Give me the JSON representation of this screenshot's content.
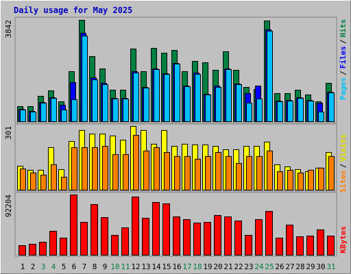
{
  "chart_data": [
    {
      "type": "bar",
      "title": "Daily usage for May 2025",
      "ylim": [
        0,
        3842
      ],
      "legend_separator": "/",
      "series": [
        {
          "name": "Hits",
          "color": "#008040",
          "values": [
            571,
            571,
            960,
            1168,
            753,
            1895,
            3842,
            2466,
            1999,
            1194,
            1194,
            2752,
            1895,
            2778,
            2596,
            2700,
            1895,
            2284,
            2232,
            1947,
            2648,
            1947,
            1298,
            1220,
            3816,
            1064,
            1064,
            1194,
            1012,
            753,
            1454
          ]
        },
        {
          "name": "Files",
          "color": "#0000ff",
          "values": [
            467,
            389,
            727,
            909,
            623,
            1480,
            3350,
            1661,
            1454,
            883,
            883,
            1895,
            1298,
            2000,
            1817,
            2207,
            1350,
            1843,
            1038,
            1350,
            2000,
            1428,
            1064,
            1350,
            3480,
            779,
            805,
            909,
            805,
            701,
            1116
          ]
        },
        {
          "name": "Pages",
          "color": "#00c0ff",
          "values": [
            441,
            363,
            701,
            883,
            441,
            831,
            3245,
            1584,
            1402,
            857,
            857,
            1843,
            1272,
            1973,
            1791,
            2181,
            1324,
            1791,
            1012,
            1298,
            1973,
            1402,
            701,
            857,
            3427,
            753,
            779,
            883,
            779,
            363,
            1090
          ]
        }
      ]
    },
    {
      "type": "bar",
      "ylim": [
        0,
        301
      ],
      "legend_separator": "/",
      "series": [
        {
          "name": "Visits",
          "color": "#ffff00",
          "values": [
            113,
            94,
            94,
            201,
            97,
            230,
            282,
            265,
            265,
            256,
            236,
            301,
            282,
            217,
            282,
            207,
            217,
            214,
            214,
            207,
            191,
            191,
            207,
            207,
            227,
            120,
            110,
            97,
            87,
            104,
            178
          ]
        },
        {
          "name": "Sites",
          "color": "#ff8000",
          "values": [
            100,
            81,
            71,
            120,
            61,
            201,
            201,
            201,
            207,
            168,
            168,
            259,
            185,
            201,
            178,
            159,
            159,
            146,
            159,
            178,
            159,
            126,
            159,
            159,
            185,
            87,
            94,
            81,
            94,
            104,
            159
          ]
        }
      ]
    },
    {
      "type": "bar",
      "ylim": [
        0,
        92204
      ],
      "categories": [
        "1",
        "2",
        "3",
        "4",
        "5",
        "6",
        "7",
        "8",
        "9",
        "10",
        "11",
        "12",
        "13",
        "14",
        "15",
        "16",
        "17",
        "18",
        "19",
        "20",
        "21",
        "22",
        "23",
        "24",
        "25",
        "26",
        "27",
        "28",
        "29",
        "30",
        "31"
      ],
      "category_colors": [
        "#000000",
        "#000000",
        "#008040",
        "#008040",
        "#000000",
        "#000000",
        "#000000",
        "#000000",
        "#000000",
        "#008040",
        "#008040",
        "#000000",
        "#000000",
        "#000000",
        "#000000",
        "#000000",
        "#008040",
        "#008040",
        "#000000",
        "#000000",
        "#000000",
        "#000000",
        "#000000",
        "#008040",
        "#008040",
        "#000000",
        "#000000",
        "#000000",
        "#000000",
        "#000000",
        "#008040"
      ],
      "series": [
        {
          "name": "KBytes",
          "color": "#ff0000",
          "values": [
            14669,
            16765,
            19908,
            36673,
            26195,
            92204,
            50294,
            77537,
            57629,
            30386,
            41912,
            89061,
            56581,
            80681,
            78585,
            58677,
            54486,
            49247,
            50294,
            60773,
            58677,
            52390,
            30386,
            54486,
            67059,
            26195,
            46104,
            28291,
            29338,
            38769,
            29338
          ]
        }
      ]
    }
  ]
}
